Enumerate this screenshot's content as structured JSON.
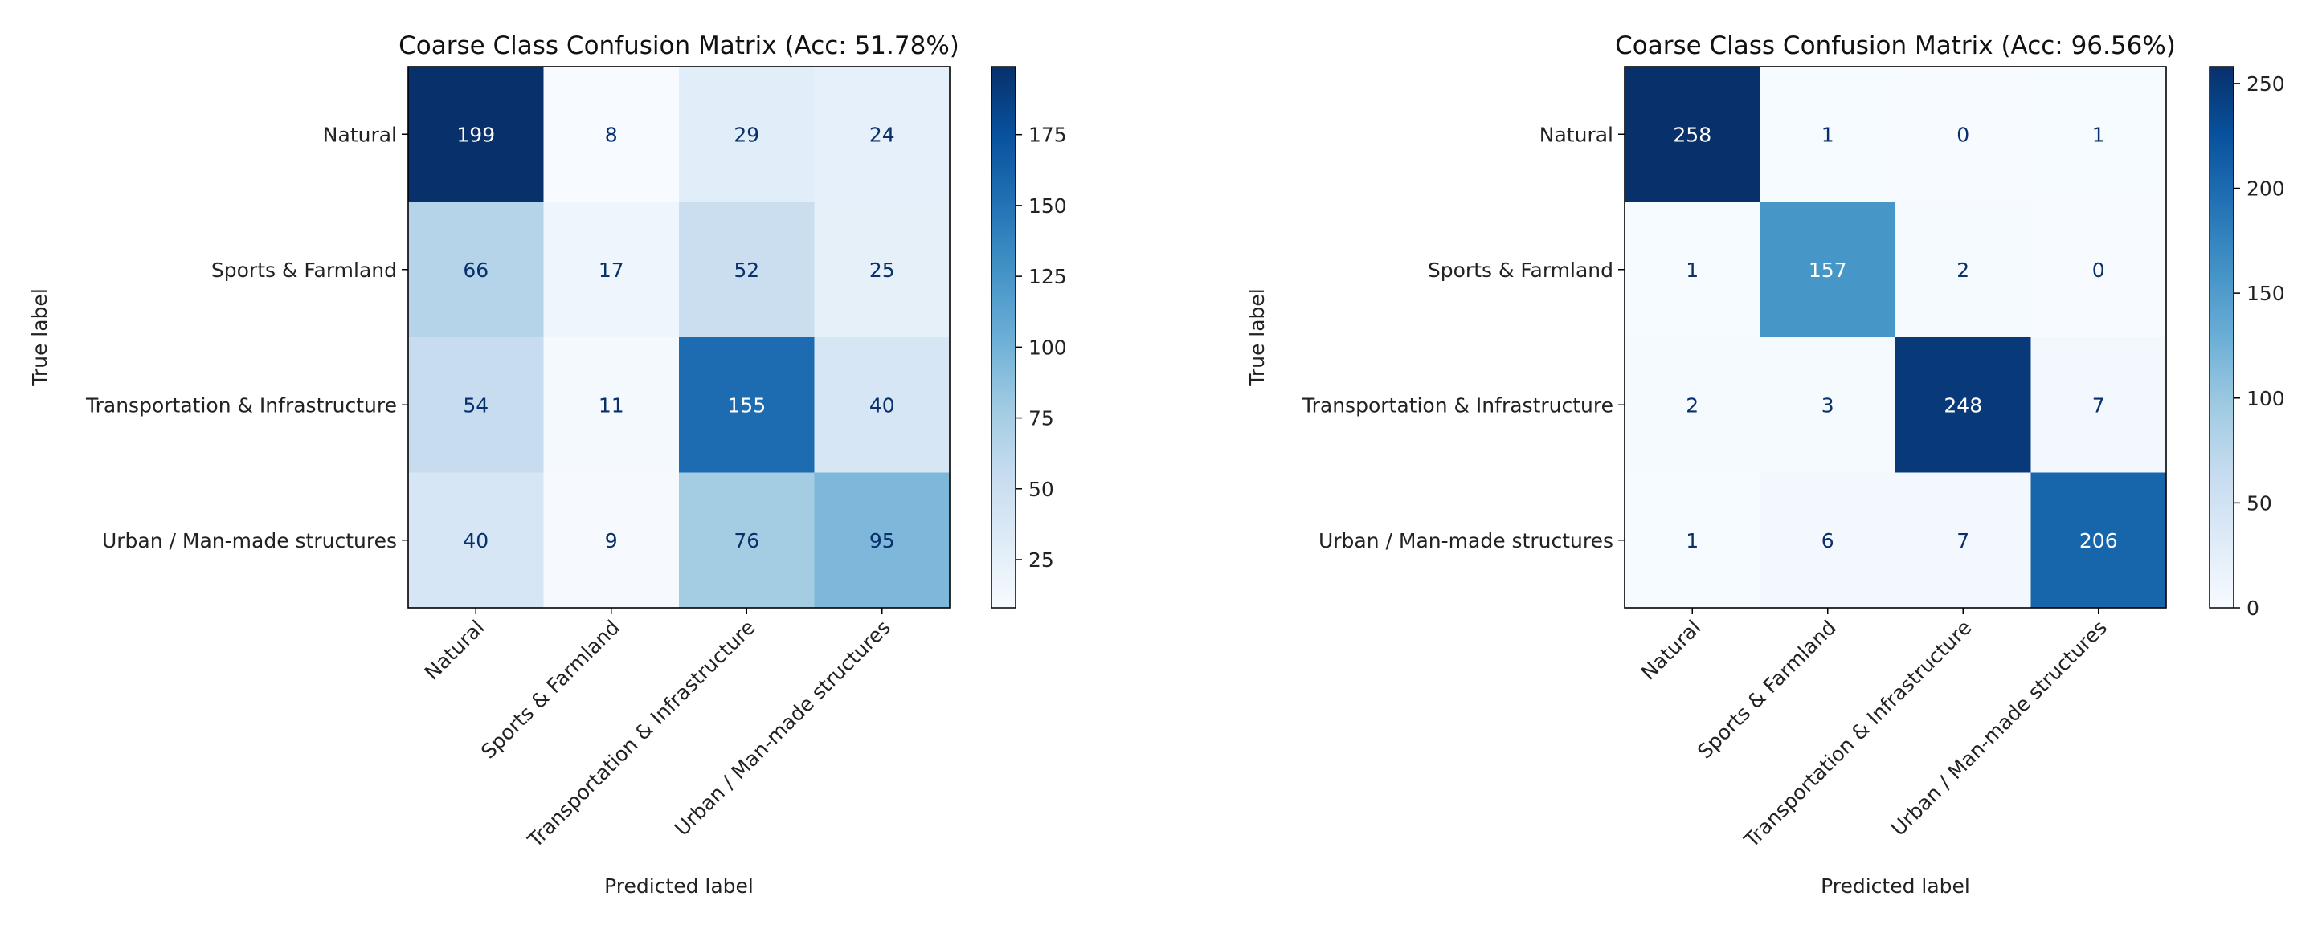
{
  "chart_data": [
    {
      "type": "heatmap",
      "title": "Coarse Class Confusion Matrix (Acc: 51.78%)",
      "xlabel": "Predicted label",
      "ylabel": "True label",
      "x_categories": [
        "Natural",
        "Sports & Farmland",
        "Transportation & Infrastructure",
        "Urban / Man-made structures"
      ],
      "y_categories": [
        "Natural",
        "Sports & Farmland",
        "Transportation & Infrastructure",
        "Urban / Man-made structures"
      ],
      "values": [
        [
          199,
          8,
          29,
          24
        ],
        [
          66,
          17,
          52,
          25
        ],
        [
          54,
          11,
          155,
          40
        ],
        [
          40,
          9,
          76,
          95
        ]
      ],
      "colormap": "Blues",
      "colorbar": {
        "min": 8,
        "max": 199,
        "ticks": [
          25,
          50,
          75,
          100,
          125,
          150,
          175
        ]
      }
    },
    {
      "type": "heatmap",
      "title": "Coarse Class Confusion Matrix (Acc: 96.56%)",
      "xlabel": "Predicted label",
      "ylabel": "True label",
      "x_categories": [
        "Natural",
        "Sports & Farmland",
        "Transportation & Infrastructure",
        "Urban / Man-made structures"
      ],
      "y_categories": [
        "Natural",
        "Sports & Farmland",
        "Transportation & Infrastructure",
        "Urban / Man-made structures"
      ],
      "values": [
        [
          258,
          1,
          0,
          1
        ],
        [
          1,
          157,
          2,
          0
        ],
        [
          2,
          3,
          248,
          7
        ],
        [
          1,
          6,
          7,
          206
        ]
      ],
      "colormap": "Blues",
      "colorbar": {
        "min": 0,
        "max": 258,
        "ticks": [
          0,
          50,
          100,
          150,
          200,
          250
        ]
      }
    }
  ]
}
